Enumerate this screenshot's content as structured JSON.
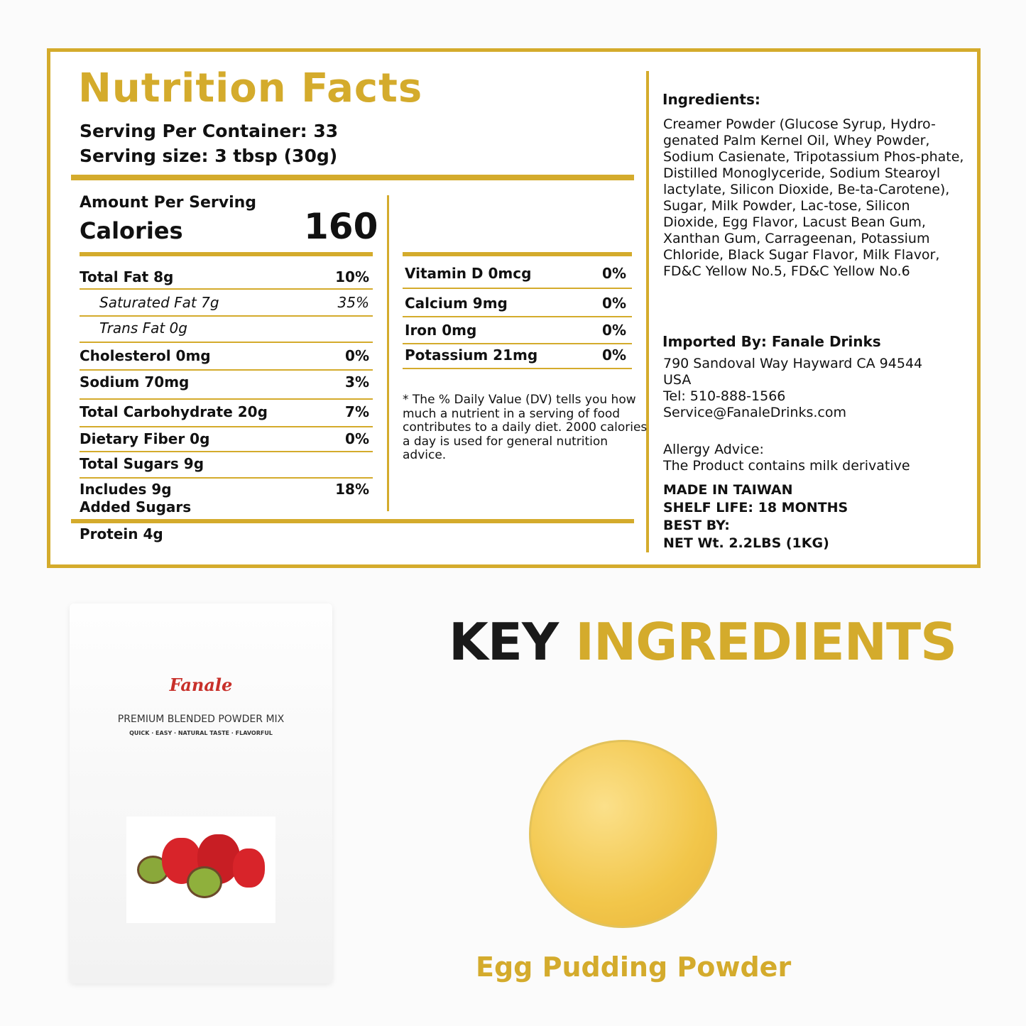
{
  "nutrition": {
    "title": "Nutrition Facts",
    "servings_per_container": "Serving Per Container: 33",
    "serving_size": "Serving size: 3 tbsp (30g)",
    "amount_per_serving": "Amount Per Serving",
    "calories_label": "Calories",
    "calories_value": "160",
    "left_rows": [
      {
        "label": "Total Fat 8g",
        "dv": "10%"
      },
      {
        "label": "Saturated Fat 7g",
        "dv": "35%"
      },
      {
        "label": "Trans Fat 0g",
        "dv": ""
      },
      {
        "label": "Cholesterol 0mg",
        "dv": "0%"
      },
      {
        "label": "Sodium 70mg",
        "dv": "3%"
      },
      {
        "label": "Total Carbohydrate 20g",
        "dv": "7%"
      },
      {
        "label": "Dietary Fiber 0g",
        "dv": "0%"
      },
      {
        "label": "Total Sugars 9g",
        "dv": ""
      },
      {
        "label": "Includes 9g",
        "label2": "Added Sugars",
        "dv": "18%"
      }
    ],
    "protein": "Protein 4g",
    "right_rows": [
      {
        "label": "Vitamin D 0mcg",
        "dv": "0%"
      },
      {
        "label": "Calcium 9mg",
        "dv": "0%"
      },
      {
        "label": "Iron 0mg",
        "dv": "0%"
      },
      {
        "label": "Potassium 21mg",
        "dv": "0%"
      }
    ],
    "footnote": "* The % Daily Value (DV) tells you how much a nutrient in a serving of food contributes to a daily diet. 2000 calories a day is used for general nutrition advice."
  },
  "info": {
    "ingredients_heading": "Ingredients:",
    "ingredients": "Creamer Powder (Glucose Syrup, Hydro-genated Palm Kernel Oil, Whey Powder, Sodium Casienate, Tripotassium Phos-phate, Distilled Monoglyceride, Sodium Stearoyl lactylate, Silicon Dioxide, Be-ta-Carotene), Sugar, Milk Powder, Lac-tose, Silicon Dioxide, Egg Flavor, Lacust Bean Gum, Xanthan Gum, Carrageenan, Potassium Chloride, Black Sugar Flavor, Milk Flavor, FD&C Yellow No.5, FD&C Yellow No.6",
    "imported_by": "Imported By: Fanale Drinks",
    "address": "790 Sandoval Way Hayward CA 94544",
    "country": "USA",
    "tel": "Tel: 510-888-1566",
    "email": "Service@FanaleDrinks.com",
    "allergy_heading": "Allergy Advice:",
    "allergy_text": "The Product contains milk derivative",
    "made_in": "MADE IN TAIWAN",
    "shelf_life": "SHELF LIFE: 18 MONTHS",
    "best_by": "BEST BY:",
    "net_wt": "NET Wt. 2.2LBS (1KG)"
  },
  "bag": {
    "brand": "Fanale",
    "product": "PREMIUM BLENDED POWDER MIX",
    "tagline": "QUICK · EASY · NATURAL TASTE · FLAVORFUL"
  },
  "key": {
    "word1": "KEY",
    "word2": "INGREDIENTS",
    "ingredient": "Egg Pudding Powder"
  },
  "colors": {
    "gold": "#d4ab2c",
    "dark": "#1a1a1a",
    "brand_red": "#c8302a"
  }
}
